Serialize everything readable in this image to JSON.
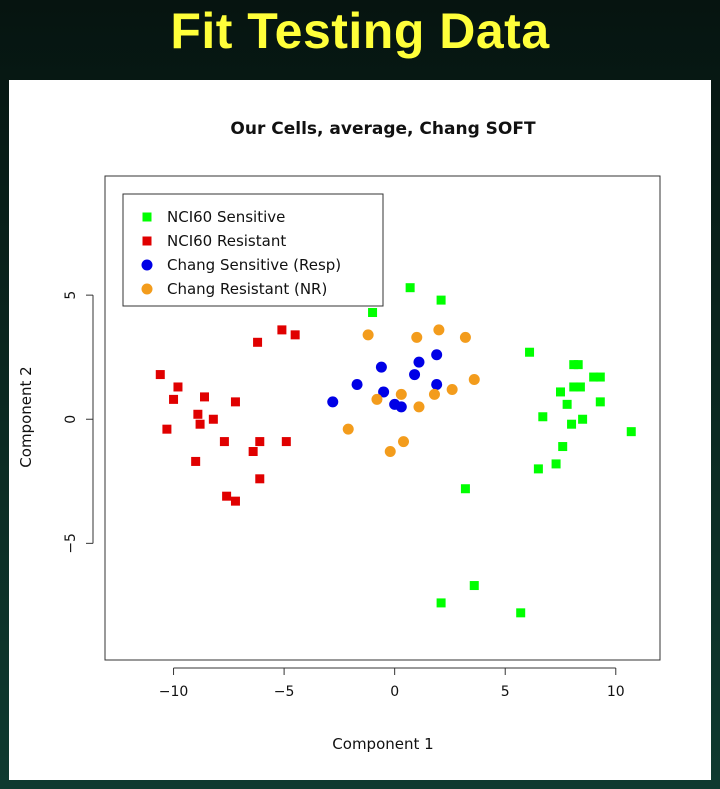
{
  "slide": {
    "title": "Fit Testing Data"
  },
  "chart_data": {
    "type": "scatter",
    "title": "Our Cells, average, Chang SOFT",
    "xlabel": "Component 1",
    "ylabel": "Component 2",
    "xlim": [
      -13.1,
      12.0
    ],
    "ylim": [
      -9.7,
      9.8
    ],
    "xticks": [
      -10,
      -5,
      0,
      5,
      10
    ],
    "xtick_labels": [
      "−10",
      "−5",
      "0",
      "5",
      "10"
    ],
    "yticks": [
      -5,
      0,
      5
    ],
    "ytick_labels": [
      "−5",
      "0",
      "5"
    ],
    "grid": false,
    "legend_position": "top-left",
    "series": [
      {
        "name": "NCI60 Sensitive",
        "color": "#00ff00",
        "marker": "square",
        "points": [
          [
            0.7,
            5.3
          ],
          [
            2.1,
            4.8
          ],
          [
            -1.0,
            4.3
          ],
          [
            6.1,
            2.7
          ],
          [
            8.3,
            2.2
          ],
          [
            8.1,
            2.2
          ],
          [
            9.0,
            1.7
          ],
          [
            9.3,
            1.7
          ],
          [
            8.1,
            1.3
          ],
          [
            8.4,
            1.3
          ],
          [
            7.5,
            1.1
          ],
          [
            7.8,
            0.6
          ],
          [
            9.3,
            0.7
          ],
          [
            6.7,
            0.1
          ],
          [
            8.5,
            0.0
          ],
          [
            8.0,
            -0.2
          ],
          [
            10.7,
            -0.5
          ],
          [
            7.6,
            -1.1
          ],
          [
            7.3,
            -1.8
          ],
          [
            6.5,
            -2.0
          ],
          [
            3.2,
            -2.8
          ],
          [
            3.6,
            -6.7
          ],
          [
            2.1,
            -7.4
          ],
          [
            5.7,
            -7.8
          ]
        ]
      },
      {
        "name": "NCI60 Resistant",
        "color": "#e00000",
        "marker": "square",
        "points": [
          [
            -5.1,
            3.6
          ],
          [
            -4.5,
            3.4
          ],
          [
            -6.2,
            3.1
          ],
          [
            -10.6,
            1.8
          ],
          [
            -9.8,
            1.3
          ],
          [
            -10.0,
            0.8
          ],
          [
            -8.6,
            0.9
          ],
          [
            -7.2,
            0.7
          ],
          [
            -8.9,
            0.2
          ],
          [
            -8.2,
            0.0
          ],
          [
            -8.8,
            -0.2
          ],
          [
            -10.3,
            -0.4
          ],
          [
            -7.7,
            -0.9
          ],
          [
            -6.1,
            -0.9
          ],
          [
            -4.9,
            -0.9
          ],
          [
            -6.4,
            -1.3
          ],
          [
            -9.0,
            -1.7
          ],
          [
            -6.1,
            -2.4
          ],
          [
            -7.6,
            -3.1
          ],
          [
            -7.2,
            -3.3
          ]
        ]
      },
      {
        "name": "Chang Sensitive (Resp)",
        "color": "#0000e6",
        "marker": "circle",
        "points": [
          [
            1.9,
            2.6
          ],
          [
            1.1,
            2.3
          ],
          [
            -0.6,
            2.1
          ],
          [
            0.9,
            1.8
          ],
          [
            -1.7,
            1.4
          ],
          [
            1.9,
            1.4
          ],
          [
            -0.5,
            1.1
          ],
          [
            -2.8,
            0.7
          ],
          [
            0.0,
            0.6
          ],
          [
            0.3,
            0.5
          ]
        ]
      },
      {
        "name": "Chang Resistant (NR)",
        "color": "#f39c1c",
        "marker": "circle",
        "points": [
          [
            -1.2,
            3.4
          ],
          [
            2.0,
            3.6
          ],
          [
            1.0,
            3.3
          ],
          [
            3.2,
            3.3
          ],
          [
            3.6,
            1.6
          ],
          [
            2.6,
            1.2
          ],
          [
            1.8,
            1.0
          ],
          [
            0.3,
            1.0
          ],
          [
            -0.8,
            0.8
          ],
          [
            1.1,
            0.5
          ],
          [
            -2.1,
            -0.4
          ],
          [
            0.4,
            -0.9
          ],
          [
            -0.2,
            -1.3
          ]
        ]
      }
    ]
  }
}
